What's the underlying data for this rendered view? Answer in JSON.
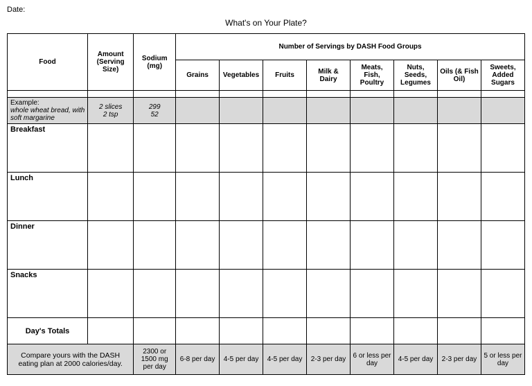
{
  "date_label": "Date:",
  "title": "What's on Your Plate?",
  "headers": {
    "food": "Food",
    "amount": "Amount (Serving Size)",
    "sodium": "Sodium (mg)",
    "groups_title": "Number of Servings by DASH Food Groups",
    "groups": [
      "Grains",
      "Vegetables",
      "Fruits",
      "Milk & Dairy",
      "Meats, Fish, Poultry",
      "Nuts, Seeds, Legumes",
      "Oils (& Fish Oil)",
      "Sweets, Added Sugars"
    ]
  },
  "example": {
    "label": "Example:",
    "food": "whole wheat bread, with soft margarine",
    "amount1": "2 slices",
    "amount2": "2 tsp",
    "sodium1": "299",
    "sodium2": "52"
  },
  "meals": [
    "Breakfast",
    "Lunch",
    "Dinner",
    "Snacks"
  ],
  "totals_label": "Day's Totals",
  "compare": {
    "text": "Compare yours with the DASH eating plan at 2000 calories/day.",
    "sodium": "2300 or 1500 mg per day",
    "groups": [
      "6-8 per day",
      "4-5 per day",
      "4-5 per day",
      "2-3 per day",
      "6 or less per day",
      "4-5 per day",
      "2-3 per day",
      "5 or less per day"
    ]
  },
  "colors": {
    "shade": "#d9d9d9",
    "border": "#000000",
    "background": "#ffffff"
  }
}
